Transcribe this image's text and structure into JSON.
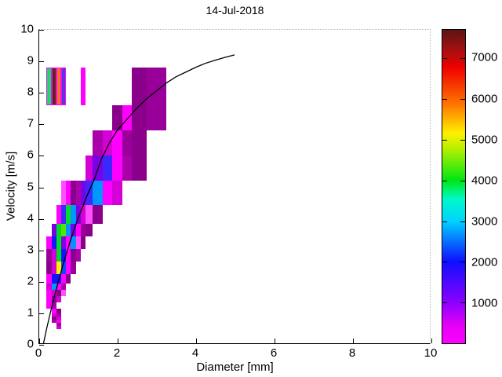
{
  "title": "14-Jul-2018",
  "chart_data": {
    "type": "heatmap",
    "title": "14-Jul-2018",
    "xlabel": "Diameter [mm]",
    "ylabel": "Velocity [m/s]",
    "xlim": [
      0,
      10
    ],
    "ylim": [
      0,
      10
    ],
    "grid": false,
    "x_tick_values": [
      0,
      2,
      4,
      6,
      8,
      10
    ],
    "x_tick_labels": [
      "0",
      "2",
      "4",
      "6",
      "8",
      "10"
    ],
    "y_tick_values": [
      0,
      1,
      2,
      3,
      4,
      5,
      6,
      7,
      8,
      9,
      10
    ],
    "y_tick_labels": [
      "0",
      "1",
      "2",
      "3",
      "4",
      "5",
      "6",
      "7",
      "8",
      "9",
      "10"
    ],
    "d_bin_edges": [
      0.187,
      0.312,
      0.437,
      0.562,
      0.687,
      0.812,
      0.937,
      1.062,
      1.187,
      1.375,
      1.625,
      1.875,
      2.125,
      2.375,
      2.75,
      3.25
    ],
    "v_bin_edges": [
      0.45,
      0.55,
      0.65,
      0.75,
      0.85,
      0.95,
      1.1,
      1.3,
      1.5,
      1.7,
      1.9,
      2.2,
      2.6,
      3.0,
      3.4,
      3.8,
      4.4,
      5.2,
      6.0,
      6.8,
      7.6,
      8.8
    ],
    "cells": [
      {
        "c": 2,
        "r": 0,
        "color": "#D500D5"
      },
      {
        "c": 2,
        "r": 1,
        "color": "#AA00AA"
      },
      {
        "c": 1,
        "r": 2,
        "color": "#AA00AA"
      },
      {
        "c": 2,
        "r": 2,
        "color": "#FF00FF"
      },
      {
        "c": 1,
        "r": 3,
        "color": "#8B008B"
      },
      {
        "c": 2,
        "r": 3,
        "color": "#D500D5"
      },
      {
        "c": 1,
        "r": 4,
        "color": "#D500D5"
      },
      {
        "c": 2,
        "r": 4,
        "color": "#AA00AA"
      },
      {
        "c": 1,
        "r": 5,
        "color": "#FF00FF"
      },
      {
        "c": 2,
        "r": 5,
        "color": "#8B008B"
      },
      {
        "c": 0,
        "r": 6,
        "color": "#FF00FF"
      },
      {
        "c": 1,
        "r": 6,
        "color": "#AA00AA"
      },
      {
        "c": 0,
        "r": 7,
        "color": "#FF00FF"
      },
      {
        "c": 1,
        "r": 7,
        "color": "#8B008B"
      },
      {
        "c": 2,
        "r": 7,
        "color": "#D500D5"
      },
      {
        "c": 0,
        "r": 8,
        "color": "#FF00FF"
      },
      {
        "c": 1,
        "r": 8,
        "color": "#D500D5"
      },
      {
        "c": 2,
        "r": 8,
        "color": "#8B008B"
      },
      {
        "c": 3,
        "r": 8,
        "color": "#FF50FF"
      },
      {
        "c": 0,
        "r": 9,
        "color": "#D500D5"
      },
      {
        "c": 1,
        "r": 9,
        "color": "#0096FF"
      },
      {
        "c": 2,
        "r": 9,
        "color": "#FF00FF"
      },
      {
        "c": 3,
        "r": 9,
        "color": "#AA00AA"
      },
      {
        "c": 0,
        "r": 10,
        "color": "#FF00FF"
      },
      {
        "c": 1,
        "r": 10,
        "color": "#1414FF"
      },
      {
        "c": 2,
        "r": 10,
        "color": "#1414FF"
      },
      {
        "c": 3,
        "r": 10,
        "color": "#FF00FF"
      },
      {
        "c": 4,
        "r": 10,
        "color": "#8B008B"
      },
      {
        "c": 0,
        "r": 11,
        "color": "#8B008B"
      },
      {
        "c": 1,
        "r": 11,
        "color": "#D500D5"
      },
      {
        "c": 2,
        "r": 11,
        "color": "#FFF000"
      },
      {
        "c": 3,
        "r": 11,
        "color": "#1446FF"
      },
      {
        "c": 4,
        "r": 11,
        "color": "#FF00FF"
      },
      {
        "c": 5,
        "r": 11,
        "color": "#990099"
      },
      {
        "c": 0,
        "r": 12,
        "color": "#990099"
      },
      {
        "c": 1,
        "r": 12,
        "color": "#D500D5"
      },
      {
        "c": 2,
        "r": 12,
        "color": "#00DC28"
      },
      {
        "c": 3,
        "r": 12,
        "color": "#1414FF"
      },
      {
        "c": 4,
        "r": 12,
        "color": "#FF00FF"
      },
      {
        "c": 5,
        "r": 12,
        "color": "#8B008B"
      },
      {
        "c": 6,
        "r": 12,
        "color": "#AA00AA"
      },
      {
        "c": 0,
        "r": 13,
        "color": "#FF00FF"
      },
      {
        "c": 1,
        "r": 13,
        "color": "#1414FF"
      },
      {
        "c": 2,
        "r": 13,
        "color": "#00DC28"
      },
      {
        "c": 3,
        "r": 13,
        "color": "#7A00E6"
      },
      {
        "c": 4,
        "r": 13,
        "color": "#FF00FF"
      },
      {
        "c": 5,
        "r": 13,
        "color": "#0096FF"
      },
      {
        "c": 6,
        "r": 13,
        "color": "#FF50FF"
      },
      {
        "c": 7,
        "r": 13,
        "color": "#8B008B"
      },
      {
        "c": 1,
        "r": 14,
        "color": "#7A00E6"
      },
      {
        "c": 2,
        "r": 14,
        "color": "#00DC28"
      },
      {
        "c": 3,
        "r": 14,
        "color": "#55E600"
      },
      {
        "c": 4,
        "r": 14,
        "color": "#0096FF"
      },
      {
        "c": 5,
        "r": 14,
        "color": "#7A00E6"
      },
      {
        "c": 6,
        "r": 14,
        "color": "#FF00FF"
      },
      {
        "c": 7,
        "r": 14,
        "color": "#990099"
      },
      {
        "c": 8,
        "r": 14,
        "color": "#8B008B"
      },
      {
        "c": 2,
        "r": 15,
        "color": "#FF00FF"
      },
      {
        "c": 3,
        "r": 15,
        "color": "#3C28FF"
      },
      {
        "c": 4,
        "r": 15,
        "color": "#00DC28"
      },
      {
        "c": 5,
        "r": 15,
        "color": "#0096FF"
      },
      {
        "c": 6,
        "r": 15,
        "color": "#7A00E6"
      },
      {
        "c": 7,
        "r": 15,
        "color": "#D500D5"
      },
      {
        "c": 8,
        "r": 15,
        "color": "#FF50FF"
      },
      {
        "c": 9,
        "r": 15,
        "color": "#8B008B"
      },
      {
        "c": 3,
        "r": 16,
        "color": "#FF50FF"
      },
      {
        "c": 4,
        "r": 16,
        "color": "#FF00FF"
      },
      {
        "c": 5,
        "r": 16,
        "color": "#8B008B"
      },
      {
        "c": 6,
        "r": 16,
        "color": "#AA00AA"
      },
      {
        "c": 7,
        "r": 16,
        "color": "#7A00E6"
      },
      {
        "c": 8,
        "r": 16,
        "color": "#3C28FF"
      },
      {
        "c": 9,
        "r": 16,
        "color": "#0096FF"
      },
      {
        "c": 10,
        "r": 16,
        "color": "#FF00FF"
      },
      {
        "c": 11,
        "r": 16,
        "color": "#D500D5"
      },
      {
        "c": 8,
        "r": 17,
        "color": "#D500D5"
      },
      {
        "c": 9,
        "r": 17,
        "color": "#7A00E6"
      },
      {
        "c": 10,
        "r": 17,
        "color": "#3C28FF"
      },
      {
        "c": 11,
        "r": 17,
        "color": "#FF00FF"
      },
      {
        "c": 12,
        "r": 17,
        "color": "#AA00AA"
      },
      {
        "c": 13,
        "r": 17,
        "color": "#8B008B"
      },
      {
        "c": 9,
        "r": 18,
        "color": "#AA00AA"
      },
      {
        "c": 10,
        "r": 18,
        "color": "#D500D5"
      },
      {
        "c": 11,
        "r": 18,
        "color": "#FF00FF"
      },
      {
        "c": 12,
        "r": 18,
        "color": "#990099"
      },
      {
        "c": 13,
        "r": 18,
        "color": "#8B008B"
      },
      {
        "c": 11,
        "r": 19,
        "color": "#8B008B"
      },
      {
        "c": 12,
        "r": 19,
        "color": "#FF00FF"
      },
      {
        "c": 13,
        "r": 19,
        "color": "#8B008B"
      },
      {
        "c": 14,
        "r": 19,
        "color": "#990099"
      },
      {
        "c": 13,
        "r": 20,
        "color": "#8B008B"
      },
      {
        "c": 14,
        "r": 20,
        "color": "#990099"
      },
      {
        "c": 0,
        "r": 20,
        "color": "#14DC64",
        "outline": true
      },
      {
        "c": 1,
        "r": 20,
        "color": "#5A2814",
        "outline": true
      },
      {
        "c": 2,
        "r": 20,
        "color": "#F07818",
        "outline": true
      },
      {
        "c": 3,
        "r": 20,
        "color": "#5537DD",
        "outline": true
      },
      {
        "c": 7,
        "r": 20,
        "color": "#FF00FF",
        "outline": true
      }
    ],
    "curve": {
      "name": "raindrop-terminal-velocity-curve",
      "color": "#000000",
      "points": [
        [
          0.11,
          0.0
        ],
        [
          0.2,
          0.52
        ],
        [
          0.3,
          1.05
        ],
        [
          0.4,
          1.55
        ],
        [
          0.5,
          2.02
        ],
        [
          0.6,
          2.46
        ],
        [
          0.7,
          2.88
        ],
        [
          0.8,
          3.28
        ],
        [
          0.9,
          3.65
        ],
        [
          1.0,
          4.0
        ],
        [
          1.2,
          4.64
        ],
        [
          1.4,
          5.2
        ],
        [
          1.6,
          5.9
        ],
        [
          1.8,
          6.4
        ],
        [
          2.0,
          6.8
        ],
        [
          2.25,
          7.15
        ],
        [
          2.5,
          7.5
        ],
        [
          2.75,
          7.8
        ],
        [
          3.0,
          8.05
        ],
        [
          3.25,
          8.3
        ],
        [
          3.5,
          8.5
        ],
        [
          3.75,
          8.65
        ],
        [
          4.0,
          8.8
        ],
        [
          4.25,
          8.93
        ],
        [
          4.5,
          9.03
        ],
        [
          4.75,
          9.12
        ],
        [
          5.0,
          9.2
        ]
      ]
    },
    "colorbar": {
      "position": "right",
      "min": 0,
      "max": 7700,
      "tick_values": [
        1000,
        2000,
        3000,
        4000,
        5000,
        6000,
        7000
      ],
      "tick_labels": [
        "1000",
        "2000",
        "3000",
        "4000",
        "5000",
        "6000",
        "7000"
      ],
      "gradient_stops": [
        {
          "pos": 0,
          "color": "#FF00FF"
        },
        {
          "pos": 6,
          "color": "#E100F5"
        },
        {
          "pos": 13,
          "color": "#8C00FF"
        },
        {
          "pos": 26,
          "color": "#0F0FFF"
        },
        {
          "pos": 39,
          "color": "#00D2FF"
        },
        {
          "pos": 46,
          "color": "#00FAC8"
        },
        {
          "pos": 52,
          "color": "#00E614"
        },
        {
          "pos": 62,
          "color": "#B4F000"
        },
        {
          "pos": 67,
          "color": "#FFF000"
        },
        {
          "pos": 76,
          "color": "#FF7800"
        },
        {
          "pos": 88,
          "color": "#F00000"
        },
        {
          "pos": 94,
          "color": "#A01010"
        },
        {
          "pos": 100,
          "color": "#5A1414"
        }
      ]
    }
  }
}
